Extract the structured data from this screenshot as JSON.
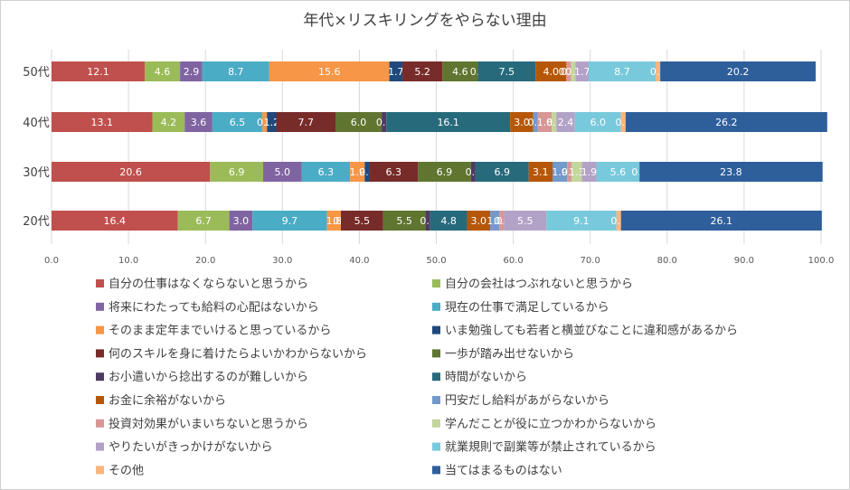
{
  "chart_data": {
    "type": "bar",
    "orientation": "horizontal",
    "stacked": true,
    "title": "年代×リスキリングをやらない理由",
    "categories": [
      "50代",
      "40代",
      "30代",
      "20代"
    ],
    "xlim": [
      0,
      100
    ],
    "xticks": [
      "0.0",
      "10.0",
      "20.0",
      "30.0",
      "40.0",
      "50.0",
      "60.0",
      "70.0",
      "80.0",
      "90.0",
      "100.0"
    ],
    "grid": true,
    "legend_position": "bottom",
    "series": [
      {
        "name": "自分の仕事はなくならないと思うから",
        "color": "#c0504d",
        "values": [
          12.1,
          13.1,
          20.6,
          16.4
        ],
        "labels": [
          "12.1",
          "13.1",
          "20.6",
          "16.4"
        ]
      },
      {
        "name": "自分の会社はつぶれないと思うから",
        "color": "#9bbb59",
        "values": [
          4.6,
          4.2,
          6.9,
          6.7
        ],
        "labels": [
          "4.6",
          "4.2",
          "6.9",
          "6.7"
        ]
      },
      {
        "name": "将来にわたっても給料の心配はないから",
        "color": "#8064a2",
        "values": [
          2.9,
          3.6,
          5.0,
          3.0
        ],
        "labels": [
          "2.9",
          "3.6",
          "5.0",
          "3.0"
        ]
      },
      {
        "name": "現在の仕事で満足しているから",
        "color": "#4bacc6",
        "values": [
          8.7,
          6.5,
          6.3,
          9.7
        ],
        "labels": [
          "8.7",
          "6.5",
          "6.3",
          "9.7"
        ]
      },
      {
        "name": "そのまま定年までいけると思っているから",
        "color": "#f79646",
        "values": [
          15.6,
          0.6,
          1.9,
          1.8
        ],
        "labels": [
          "15.6",
          "0.6",
          "1.9",
          "1.8"
        ]
      },
      {
        "name": "いま勉強しても若者と横並びなことに違和感があるから",
        "color": "#1f497d",
        "values": [
          1.7,
          1.2,
          0.6,
          0.0
        ],
        "labels": [
          "1.7",
          "1.2",
          "0.6",
          "0.0"
        ]
      },
      {
        "name": "何のスキルを身に着けたらよいかわからないから",
        "color": "#772c2a",
        "values": [
          5.2,
          7.7,
          6.3,
          5.5
        ],
        "labels": [
          "5.2",
          "7.7",
          "6.3",
          "5.5"
        ]
      },
      {
        "name": "一歩が踏み出せないから",
        "color": "#5f7530",
        "values": [
          4.6,
          6.0,
          6.9,
          5.5
        ],
        "labels": [
          "4.6",
          "6.0",
          "6.9",
          "5.5"
        ]
      },
      {
        "name": "お小遣いから捻出するのが難しいから",
        "color": "#4d3b62",
        "values": [
          0.0,
          0.6,
          0.6,
          0.6
        ],
        "labels": [
          "0.0",
          "0.6",
          "0.6",
          "0.6"
        ]
      },
      {
        "name": "時間がないから",
        "color": "#276a7c",
        "values": [
          7.5,
          16.1,
          6.9,
          4.8
        ],
        "labels": [
          "7.5",
          "16.1",
          "6.9",
          "4.8"
        ]
      },
      {
        "name": "お金に余裕がないから",
        "color": "#b65708",
        "values": [
          4.0,
          3.0,
          3.1,
          3.0
        ],
        "labels": [
          "4.0",
          "3.0",
          "3.1",
          "3.0"
        ]
      },
      {
        "name": "円安だし給料があがらないから",
        "color": "#729aca",
        "values": [
          0.0,
          0.6,
          1.9,
          1.2
        ],
        "labels": [
          "0.0",
          "0.6",
          "1.9",
          "1.2"
        ]
      },
      {
        "name": "投資対効果がいまいちないと思うから",
        "color": "#d99694",
        "values": [
          0.6,
          1.8,
          0.6,
          0.6
        ],
        "labels": [
          "0.6",
          "1.8",
          "0.6",
          "0.6"
        ]
      },
      {
        "name": "学んだことが役に立つかわからないから",
        "color": "#c3d69b",
        "values": [
          0.6,
          0.6,
          1.3,
          0.0
        ],
        "labels": [
          "0.6",
          "0.6",
          "1.3",
          "0.0"
        ]
      },
      {
        "name": "やりたいがきっかけがないから",
        "color": "#b3a2c7",
        "values": [
          1.7,
          2.4,
          1.9,
          5.5
        ],
        "labels": [
          "1.7",
          "2.4",
          "1.9",
          "5.5"
        ]
      },
      {
        "name": "就業規則で副業等が禁止されているから",
        "color": "#79c9dc",
        "values": [
          8.7,
          6.0,
          5.6,
          9.1
        ],
        "labels": [
          "8.7",
          "6.0",
          "5.6",
          "9.1"
        ]
      },
      {
        "name": "その他",
        "color": "#fab57d",
        "values": [
          0.6,
          0.6,
          0.0,
          0.6
        ],
        "labels": [
          "0.6",
          "0.6",
          "0.0",
          "0.6"
        ]
      },
      {
        "name": "当てはまるものはない",
        "color": "#2e5f9b",
        "values": [
          20.2,
          26.2,
          23.8,
          26.1
        ],
        "labels": [
          "20.2",
          "26.2",
          "23.8",
          "26.1"
        ]
      }
    ]
  }
}
